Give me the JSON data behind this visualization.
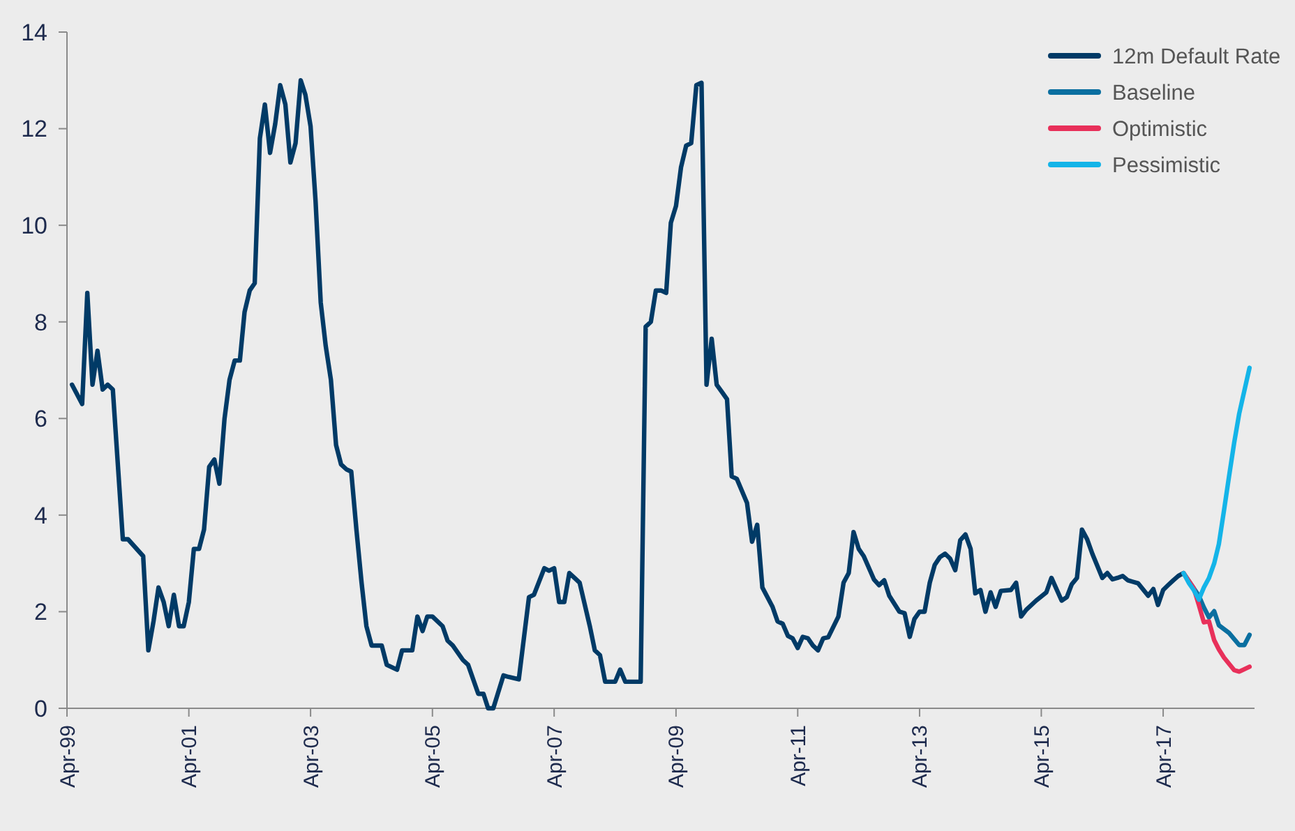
{
  "chart_data": {
    "type": "line",
    "xlim": [
      "1999-04",
      "2018-10"
    ],
    "ylim": [
      0,
      14
    ],
    "yticks": [
      0,
      2,
      4,
      6,
      8,
      10,
      12,
      14
    ],
    "xticks": [
      {
        "value": "1999-04",
        "label": "Apr-99"
      },
      {
        "value": "2001-04",
        "label": "Apr-01"
      },
      {
        "value": "2003-04",
        "label": "Apr-03"
      },
      {
        "value": "2005-04",
        "label": "Apr-05"
      },
      {
        "value": "2007-04",
        "label": "Apr-07"
      },
      {
        "value": "2009-04",
        "label": "Apr-09"
      },
      {
        "value": "2011-04",
        "label": "Apr-11"
      },
      {
        "value": "2013-04",
        "label": "Apr-13"
      },
      {
        "value": "2015-04",
        "label": "Apr-15"
      },
      {
        "value": "2017-04",
        "label": "Apr-17"
      }
    ],
    "grid": false,
    "legend": "top right",
    "line_style": "solid",
    "marker": "none",
    "series": [
      {
        "name": "12m Default Rate",
        "color": "#003a66",
        "x": [
          "1999-05",
          "1999-07",
          "1999-08",
          "1999-09",
          "1999-10",
          "1999-11",
          "1999-12",
          "2000-01",
          "2000-02",
          "2000-03",
          "2000-04",
          "2000-07",
          "2000-08",
          "2000-09",
          "2000-10",
          "2000-11",
          "2000-12",
          "2001-01",
          "2001-02",
          "2001-03",
          "2001-04",
          "2001-05",
          "2001-06",
          "2001-07",
          "2001-08",
          "2001-09",
          "2001-10",
          "2001-11",
          "2001-12",
          "2002-01",
          "2002-02",
          "2002-03",
          "2002-04",
          "2002-05",
          "2002-06",
          "2002-07",
          "2002-08",
          "2002-09",
          "2002-10",
          "2002-11",
          "2002-12",
          "2003-01",
          "2003-02",
          "2003-03",
          "2003-04",
          "2003-05",
          "2003-06",
          "2003-07",
          "2003-08",
          "2003-09",
          "2003-10",
          "2003-11",
          "2003-12",
          "2004-01",
          "2004-02",
          "2004-03",
          "2004-04",
          "2004-05",
          "2004-06",
          "2004-07",
          "2004-09",
          "2004-10",
          "2004-12",
          "2005-01",
          "2005-02",
          "2005-03",
          "2005-04",
          "2005-06",
          "2005-07",
          "2005-08",
          "2005-10",
          "2005-11",
          "2006-01",
          "2006-02",
          "2006-03",
          "2006-04",
          "2006-06",
          "2006-07",
          "2006-09",
          "2006-11",
          "2006-12",
          "2007-02",
          "2007-03",
          "2007-04",
          "2007-05",
          "2007-06",
          "2007-07",
          "2007-08",
          "2007-09",
          "2007-11",
          "2007-12",
          "2008-01",
          "2008-02",
          "2008-04",
          "2008-05",
          "2008-06",
          "2008-09",
          "2008-10",
          "2008-11",
          "2008-12",
          "2009-01",
          "2009-02",
          "2009-03",
          "2009-04",
          "2009-05",
          "2009-06",
          "2009-07",
          "2009-08",
          "2009-09",
          "2009-10",
          "2009-11",
          "2009-12",
          "2010-01",
          "2010-02",
          "2010-03",
          "2010-04",
          "2010-06",
          "2010-07",
          "2010-08",
          "2010-09",
          "2010-11",
          "2010-12",
          "2011-01",
          "2011-02",
          "2011-03",
          "2011-04",
          "2011-05",
          "2011-06",
          "2011-07",
          "2011-08",
          "2011-09",
          "2011-10",
          "2011-12",
          "2012-01",
          "2012-02",
          "2012-03",
          "2012-04",
          "2012-05",
          "2012-07",
          "2012-08",
          "2012-09",
          "2012-10",
          "2012-12",
          "2013-01",
          "2013-02",
          "2013-03",
          "2013-04",
          "2013-05",
          "2013-06",
          "2013-07",
          "2013-08",
          "2013-09",
          "2013-10",
          "2013-11",
          "2013-12",
          "2014-01",
          "2014-02",
          "2014-03",
          "2014-04",
          "2014-05",
          "2014-06",
          "2014-07",
          "2014-08",
          "2014-10",
          "2014-11",
          "2014-12",
          "2015-01",
          "2015-03",
          "2015-05",
          "2015-06",
          "2015-08",
          "2015-09",
          "2015-10",
          "2015-11",
          "2015-12",
          "2016-01",
          "2016-02",
          "2016-04",
          "2016-05",
          "2016-06",
          "2016-07",
          "2016-08",
          "2016-09",
          "2016-10",
          "2016-11",
          "2017-01",
          "2017-02",
          "2017-03",
          "2017-04",
          "2017-05",
          "2017-06",
          "2017-07",
          "2017-08"
        ],
        "values": [
          6.7,
          6.3,
          8.6,
          6.7,
          7.4,
          6.6,
          6.7,
          6.6,
          5.0,
          3.5,
          3.5,
          3.15,
          1.2,
          1.8,
          2.5,
          2.2,
          1.7,
          2.35,
          1.7,
          1.7,
          2.2,
          3.3,
          3.3,
          3.7,
          5.0,
          5.15,
          4.65,
          6.0,
          6.8,
          7.2,
          7.2,
          8.2,
          8.65,
          8.8,
          11.8,
          12.5,
          11.5,
          12.1,
          12.9,
          12.5,
          11.3,
          11.7,
          13.0,
          12.7,
          12.05,
          10.5,
          8.4,
          7.5,
          6.8,
          5.45,
          5.05,
          4.95,
          4.9,
          3.7,
          2.6,
          1.7,
          1.3,
          1.3,
          1.3,
          0.9,
          0.8,
          1.2,
          1.2,
          1.9,
          1.6,
          1.9,
          1.9,
          1.7,
          1.4,
          1.3,
          1.0,
          0.9,
          0.3,
          0.3,
          0.0,
          0.0,
          0.68,
          0.65,
          0.6,
          2.3,
          2.35,
          2.9,
          2.85,
          2.9,
          2.2,
          2.2,
          2.8,
          2.7,
          2.6,
          1.7,
          1.2,
          1.1,
          0.55,
          0.55,
          0.8,
          0.55,
          0.55,
          7.9,
          8.0,
          8.65,
          8.65,
          8.6,
          10.05,
          10.4,
          11.2,
          11.65,
          11.7,
          12.9,
          12.95,
          6.7,
          7.65,
          6.7,
          6.55,
          6.4,
          4.8,
          4.75,
          4.25,
          3.45,
          3.8,
          2.5,
          2.1,
          1.8,
          1.75,
          1.5,
          1.45,
          1.25,
          1.48,
          1.45,
          1.3,
          1.2,
          1.45,
          1.47,
          1.9,
          2.6,
          2.8,
          3.65,
          3.3,
          3.15,
          2.67,
          2.55,
          2.65,
          2.33,
          2.0,
          1.97,
          1.48,
          1.85,
          2.0,
          2.0,
          2.6,
          2.97,
          3.13,
          3.2,
          3.1,
          2.86,
          3.48,
          3.6,
          3.3,
          2.38,
          2.45,
          2.0,
          2.4,
          2.1,
          2.43,
          2.45,
          2.6,
          1.9,
          2.04,
          2.23,
          2.4,
          2.7,
          2.23,
          2.3,
          2.57,
          2.7,
          3.7,
          3.5,
          3.2,
          2.7,
          2.8,
          2.67,
          2.7,
          2.74,
          2.65,
          2.62,
          2.59,
          2.33,
          2.47,
          2.14,
          2.45,
          2.55,
          2.65,
          2.74,
          2.8
        ]
      },
      {
        "name": "Baseline",
        "color": "#0a6fa0",
        "x": [
          "2017-08",
          "2017-11",
          "2017-12",
          "2018-01",
          "2018-02",
          "2018-03",
          "2018-05",
          "2018-07",
          "2018-08",
          "2018-09"
        ],
        "values": [
          2.8,
          2.33,
          2.09,
          1.88,
          2.01,
          1.72,
          1.56,
          1.31,
          1.31,
          1.52
        ]
      },
      {
        "name": "Optimistic",
        "color": "#e8305a",
        "x": [
          "2017-08",
          "2017-10",
          "2017-11",
          "2017-12",
          "2018-01",
          "2018-02",
          "2018-03",
          "2018-04",
          "2018-06",
          "2018-07",
          "2018-09"
        ],
        "values": [
          2.8,
          2.49,
          2.14,
          1.78,
          1.8,
          1.41,
          1.22,
          1.05,
          0.79,
          0.76,
          0.86
        ]
      },
      {
        "name": "Pessimistic",
        "color": "#14b4e8",
        "x": [
          "2017-08",
          "2017-09",
          "2017-10",
          "2017-11",
          "2017-12",
          "2018-01",
          "2018-02",
          "2018-03",
          "2018-04",
          "2018-05",
          "2018-06",
          "2018-07",
          "2018-09"
        ],
        "values": [
          2.8,
          2.6,
          2.45,
          2.25,
          2.5,
          2.7,
          3.0,
          3.4,
          4.1,
          4.8,
          5.5,
          6.1,
          7.05
        ]
      }
    ]
  }
}
